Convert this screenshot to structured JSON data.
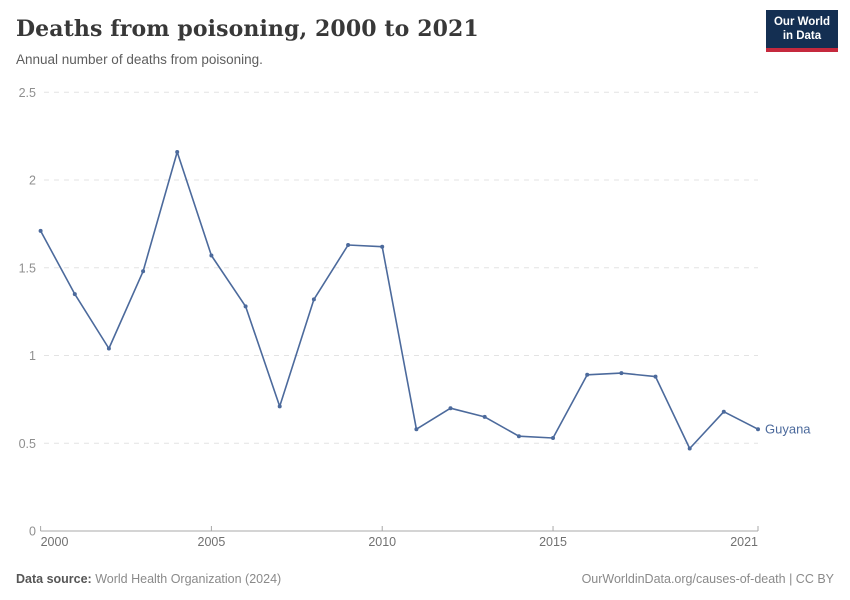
{
  "header": {
    "title": "Deaths from poisoning, 2000 to 2021",
    "subtitle": "Annual number of deaths from poisoning.",
    "logo_line1": "Our World",
    "logo_line2": "in Data"
  },
  "chart_data": {
    "type": "line",
    "title": "Deaths from poisoning, 2000 to 2021",
    "subtitle": "Annual number of deaths from poisoning.",
    "x": [
      2000,
      2001,
      2002,
      2003,
      2004,
      2005,
      2006,
      2007,
      2008,
      2009,
      2010,
      2011,
      2012,
      2013,
      2014,
      2015,
      2016,
      2017,
      2018,
      2019,
      2020,
      2021
    ],
    "series": [
      {
        "name": "Guyana",
        "color": "#4c6a9c",
        "values": [
          1.71,
          1.35,
          1.04,
          1.48,
          2.16,
          1.57,
          1.28,
          0.71,
          1.32,
          1.63,
          1.62,
          0.58,
          0.7,
          0.65,
          0.54,
          0.53,
          0.89,
          0.9,
          0.88,
          0.47,
          0.68,
          0.58
        ]
      }
    ],
    "xlabel": "",
    "ylabel": "",
    "xlim": [
      2000,
      2021
    ],
    "ylim": [
      0,
      2.5
    ],
    "x_ticks": [
      2000,
      2005,
      2010,
      2015,
      2021
    ],
    "y_ticks": [
      0,
      0.5,
      1,
      1.5,
      2,
      2.5
    ],
    "grid": "horizontal-dashed",
    "legend_position": "end-of-line-label",
    "end_label": "Guyana"
  },
  "footer": {
    "source_label": "Data source:",
    "source_value": "World Health Organization (2024)",
    "license": "OurWorldinData.org/causes-of-death | CC BY"
  },
  "colors": {
    "line": "#4c6a9c",
    "end_label": "#4c6a9c",
    "grid": "#e3e3e3",
    "axis": "#a8a8a8",
    "y_tick_label": "#8f8f8f",
    "x_tick_label": "#717171",
    "logo_bg": "#142f52",
    "logo_accent": "#c5293d"
  }
}
